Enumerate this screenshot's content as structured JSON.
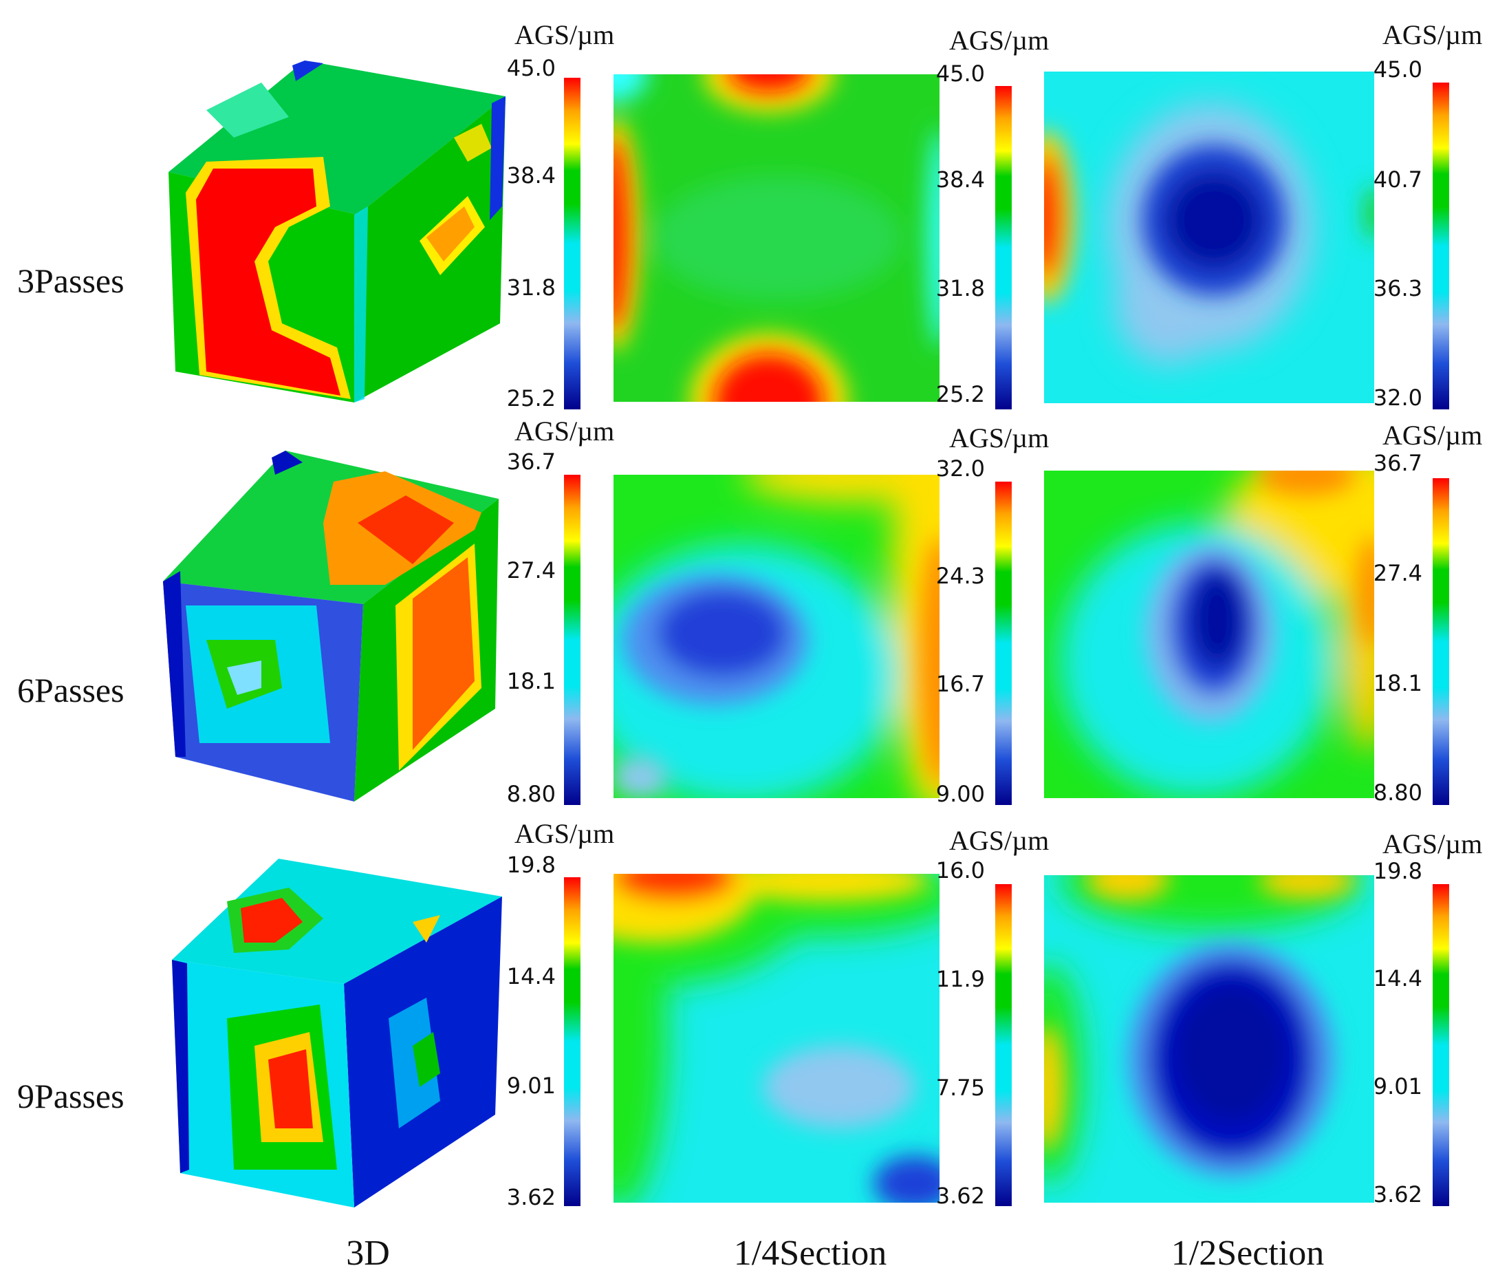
{
  "colormap": [
    "#00008b",
    "#1f4fd8",
    "#8fb8f0",
    "#00e8f0",
    "#00d000",
    "#ffff00",
    "#ffa500",
    "#ff0000"
  ],
  "unit_label": "AGS/µm",
  "row_labels": [
    "3Passes",
    "6Passes",
    "9Passes"
  ],
  "column_labels": [
    "3D",
    "1/4Section",
    "1/2Section"
  ],
  "panels": [
    {
      "ticks": [
        "45.0",
        "38.4",
        "31.8",
        "25.2"
      ]
    },
    {
      "ticks": [
        "45.0",
        "38.4",
        "31.8",
        "25.2"
      ]
    },
    {
      "ticks": [
        "45.0",
        "40.7",
        "36.3",
        "32.0"
      ]
    },
    {
      "ticks": [
        "36.7",
        "27.4",
        "18.1",
        "8.80"
      ]
    },
    {
      "ticks": [
        "32.0",
        "24.3",
        "16.7",
        "9.00"
      ]
    },
    {
      "ticks": [
        "36.7",
        "27.4",
        "18.1",
        "8.80"
      ]
    },
    {
      "ticks": [
        "19.8",
        "14.4",
        "9.01",
        "3.62"
      ]
    },
    {
      "ticks": [
        "16.0",
        "11.9",
        "7.75",
        "3.62"
      ]
    },
    {
      "ticks": [
        "19.8",
        "14.4",
        "9.01",
        "3.62"
      ]
    }
  ]
}
